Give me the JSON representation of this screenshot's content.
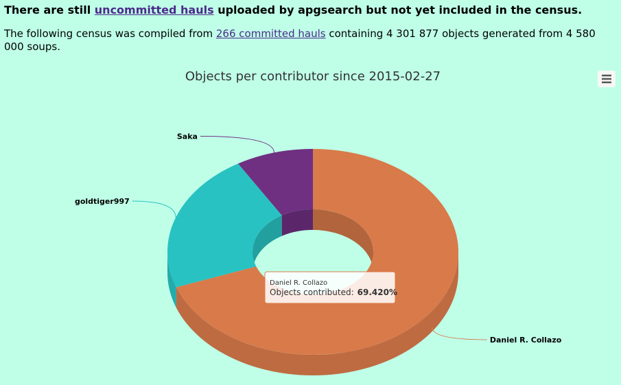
{
  "header": {
    "notice": {
      "before": "There are still ",
      "link": "uncommitted hauls",
      "after": " uploaded by apgsearch but not yet included in the census."
    },
    "summary": {
      "before": "The following census was compiled from ",
      "link": "266 committed hauls",
      "after": " containing 4 301 877 objects generated from 4 580 000 soups."
    }
  },
  "chart_data": {
    "type": "pie",
    "donut": true,
    "title": "Objects per contributor since 2015-02-27",
    "categories": [
      "Daniel R. Collazo",
      "goldtiger997",
      "Saka"
    ],
    "values": [
      69.42,
      21.98,
      8.6
    ],
    "value_labels": [
      "69.420%",
      null,
      null
    ],
    "colors": [
      "#d97a4a",
      "#29c2c2",
      "#6f3081"
    ],
    "tooltip_label": "Objects contributed:"
  }
}
